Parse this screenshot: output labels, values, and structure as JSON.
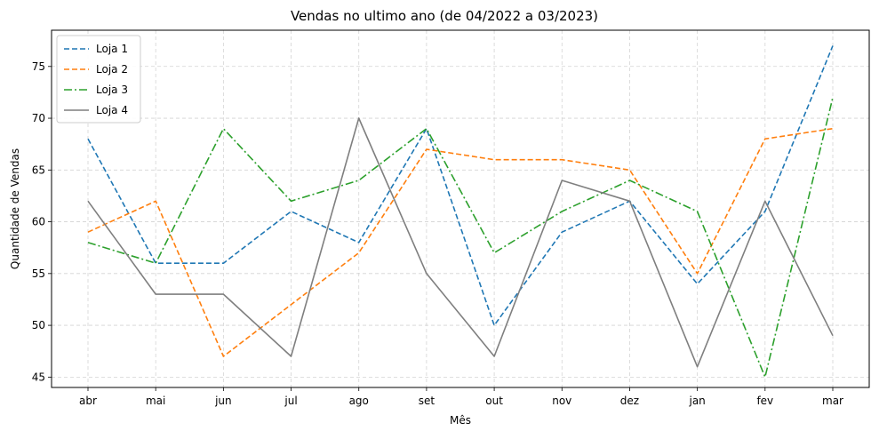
{
  "chart_data": {
    "type": "line",
    "title": "Vendas no ultimo ano (de 04/2022 a 03/2023)",
    "xlabel": "Mês",
    "ylabel": "Quantidade de Vendas",
    "categories": [
      "abr",
      "mai",
      "jun",
      "jul",
      "ago",
      "set",
      "out",
      "nov",
      "dez",
      "jan",
      "fev",
      "mar"
    ],
    "ylim": [
      44,
      78.5
    ],
    "yticks": [
      45,
      50,
      55,
      60,
      65,
      70,
      75
    ],
    "grid": true,
    "legend_position": "top-left",
    "series": [
      {
        "name": "Loja 1",
        "color": "#1f77b4",
        "linestyle": "dashed",
        "values": [
          68,
          56,
          56,
          61,
          58,
          69,
          50,
          59,
          62,
          54,
          61,
          77
        ]
      },
      {
        "name": "Loja 2",
        "color": "#ff7f0e",
        "linestyle": "dashed",
        "values": [
          59,
          62,
          47,
          52,
          57,
          67,
          66,
          66,
          65,
          55,
          68,
          69
        ]
      },
      {
        "name": "Loja 3",
        "color": "#2ca02c",
        "linestyle": "dashdot",
        "values": [
          58,
          56,
          69,
          62,
          64,
          69,
          57,
          61,
          64,
          61,
          45,
          72
        ]
      },
      {
        "name": "Loja 4",
        "color": "#7f7f7f",
        "linestyle": "solid",
        "values": [
          62,
          53,
          53,
          47,
          70,
          55,
          47,
          64,
          62,
          46,
          62,
          49
        ]
      }
    ]
  }
}
